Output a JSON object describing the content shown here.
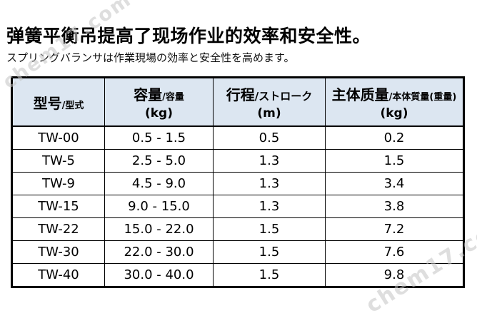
{
  "title": "弹簧平衡吊提高了现场作业的效率和安全性。",
  "subtitle": "スプリングバランサは作業現場の効率と安全性を高めます。",
  "watermark": {
    "text": "chem17.com"
  },
  "colors": {
    "header_bg": "#dce6f1",
    "border": "#000000",
    "text": "#000000",
    "watermark": "#c4c4c4"
  },
  "table": {
    "headers": [
      {
        "main": "型号",
        "sub": "/型式",
        "unit": ""
      },
      {
        "main": "容量",
        "sub": "/容量",
        "unit": "(kg)"
      },
      {
        "main": "行程",
        "sub": "/ストローク",
        "unit": "(m)"
      },
      {
        "main": "主体质量",
        "sub": "/本体質量(重量)",
        "unit": "(kg)"
      }
    ],
    "rows": [
      {
        "model": "TW-00",
        "capacity": "0.5 - 1.5",
        "stroke": "0.5",
        "weight": "0.2"
      },
      {
        "model": "TW-5",
        "capacity": "2.5 - 5.0",
        "stroke": "1.3",
        "weight": "1.5"
      },
      {
        "model": "TW-9",
        "capacity": "4.5 - 9.0",
        "stroke": "1.3",
        "weight": "3.4"
      },
      {
        "model": "TW-15",
        "capacity": "9.0 - 15.0",
        "stroke": "1.3",
        "weight": "3.8"
      },
      {
        "model": "TW-22",
        "capacity": "15.0 - 22.0",
        "stroke": "1.5",
        "weight": "7.2"
      },
      {
        "model": "TW-30",
        "capacity": "22.0 - 30.0",
        "stroke": "1.5",
        "weight": "7.6"
      },
      {
        "model": "TW-40",
        "capacity": "30.0 - 40.0",
        "stroke": "1.5",
        "weight": "9.8"
      }
    ]
  }
}
